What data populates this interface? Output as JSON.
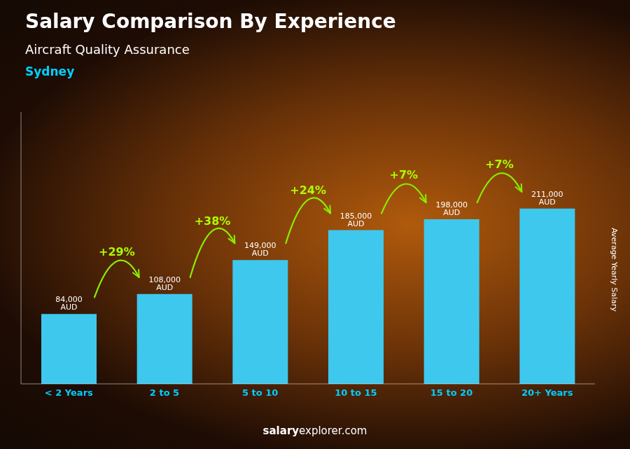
{
  "chart_data": {
    "type": "bar",
    "title": "Salary Comparison By Experience",
    "subtitle": "Aircraft Quality Assurance",
    "city": "Sydney",
    "y_label": "Average Yearly Salary",
    "categories": [
      "< 2 Years",
      "2 to 5",
      "5 to 10",
      "10 to 15",
      "15 to 20",
      "20+ Years"
    ],
    "values": [
      84000,
      108000,
      149000,
      185000,
      198000,
      211000
    ],
    "value_labels": [
      "84,000 AUD",
      "108,000 AUD",
      "149,000 AUD",
      "185,000 AUD",
      "198,000 AUD",
      "211,000 AUD"
    ],
    "data_labels": true,
    "color": "#3EC8EE",
    "pct_changes": [
      "+29%",
      "+38%",
      "+24%",
      "+7%",
      "+7%"
    ],
    "footer": [
      "salary",
      "explorer.com"
    ],
    "ylim": [
      0,
      327050
    ],
    "tick_labels": "x",
    "grid": false
  }
}
